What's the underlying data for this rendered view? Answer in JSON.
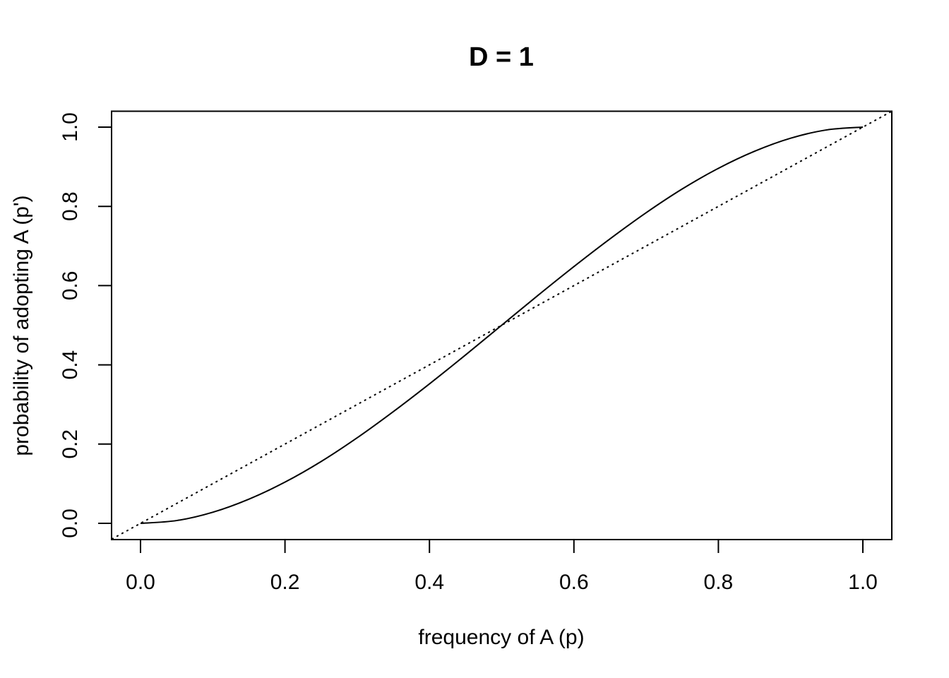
{
  "chart_data": {
    "type": "line",
    "title": "D = 1",
    "xlabel": "frequency of A (p)",
    "ylabel": "probability of adopting A (p')",
    "xlim": [
      0,
      1
    ],
    "ylim": [
      0,
      1
    ],
    "x_ticks": [
      "0.0",
      "0.2",
      "0.4",
      "0.6",
      "0.8",
      "1.0"
    ],
    "y_ticks": [
      "0.0",
      "0.2",
      "0.4",
      "0.6",
      "0.8",
      "1.0"
    ],
    "grid": false,
    "legend": "none",
    "series": [
      {
        "style": "solid",
        "color": "#000000",
        "x": [
          0.0,
          0.05,
          0.1,
          0.15,
          0.2,
          0.25,
          0.3,
          0.35,
          0.4,
          0.45,
          0.5,
          0.55,
          0.6,
          0.65,
          0.7,
          0.75,
          0.8,
          0.85,
          0.9,
          0.95,
          1.0
        ],
        "y": [
          0.0,
          0.007,
          0.028,
          0.061,
          0.104,
          0.156,
          0.216,
          0.282,
          0.352,
          0.425,
          0.5,
          0.575,
          0.648,
          0.718,
          0.784,
          0.844,
          0.896,
          0.939,
          0.972,
          0.993,
          1.0
        ]
      },
      {
        "style": "dotted",
        "color": "#000000",
        "x": [
          -0.04,
          1.04
        ],
        "y": [
          -0.04,
          1.04
        ]
      }
    ]
  }
}
